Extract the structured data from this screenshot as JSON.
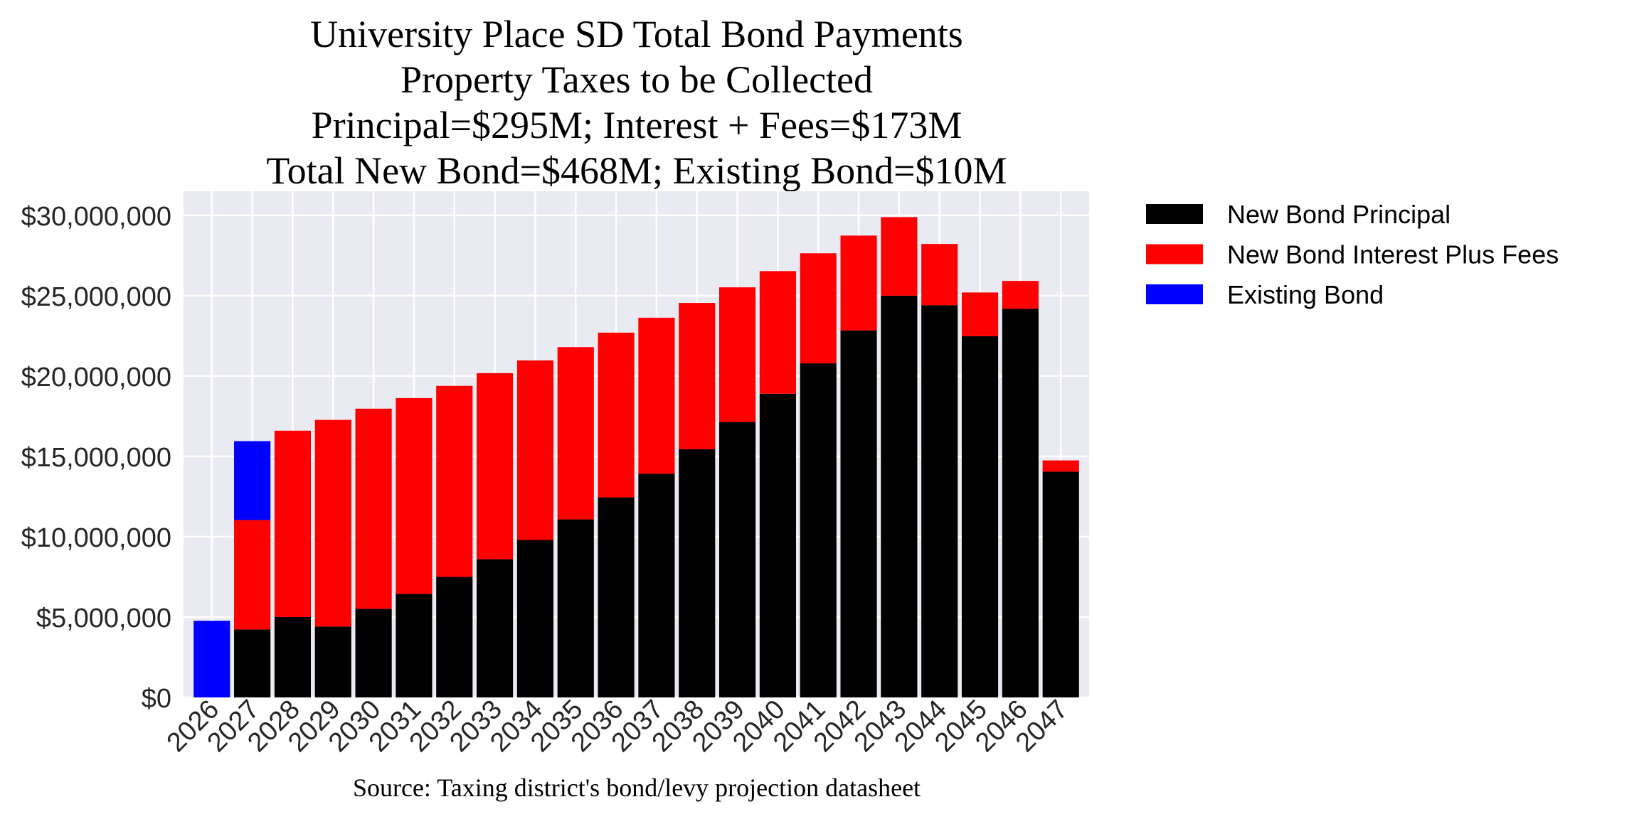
{
  "chart_data": {
    "type": "bar",
    "stacked": true,
    "title_lines": [
      "University Place SD Total Bond Payments",
      "Property Taxes to be Collected",
      "Principal=$295M; Interest + Fees=$173M",
      "Total New Bond=$468M; Existing Bond=$10M"
    ],
    "xlabel": "Source: Taxing district's bond/levy projection datasheet",
    "ylabel": "",
    "ylim": [
      0,
      31500000
    ],
    "yticks": [
      0,
      5000000,
      10000000,
      15000000,
      20000000,
      25000000,
      30000000
    ],
    "ytick_labels": [
      "$0",
      "$5,000,000",
      "$10,000,000",
      "$15,000,000",
      "$20,000,000",
      "$25,000,000",
      "$30,000,000"
    ],
    "grid": true,
    "background": "#EAEAF2",
    "legend_position": "outside-right-top",
    "categories": [
      "2026",
      "2027",
      "2028",
      "2029",
      "2030",
      "2031",
      "2032",
      "2033",
      "2034",
      "2035",
      "2036",
      "2037",
      "2038",
      "2039",
      "2040",
      "2041",
      "2042",
      "2043",
      "2044",
      "2045",
      "2046",
      "2047"
    ],
    "series": [
      {
        "name": "New Bond Principal",
        "color": "#000000",
        "values": [
          0,
          4230000,
          5000000,
          4410000,
          5520000,
          6440000,
          7500000,
          8600000,
          9800000,
          11080000,
          12450000,
          13920000,
          15450000,
          17140000,
          18900000,
          20790000,
          22840000,
          25000000,
          24410000,
          22480000,
          24190000,
          14050000
        ]
      },
      {
        "name": "New Bond Interest Plus Fees",
        "color": "#FF0000",
        "values": [
          0,
          6810000,
          11600000,
          12860000,
          12450000,
          12190000,
          11890000,
          11580000,
          11170000,
          10720000,
          10250000,
          9710000,
          9100000,
          8380000,
          7630000,
          6850000,
          5900000,
          4890000,
          3810000,
          2720000,
          1730000,
          700000
        ]
      },
      {
        "name": "Existing Bond",
        "color": "#0000FF",
        "values": [
          4770000,
          4910000,
          0,
          0,
          0,
          0,
          0,
          0,
          0,
          0,
          0,
          0,
          0,
          0,
          0,
          0,
          0,
          0,
          0,
          0,
          0,
          0
        ]
      }
    ]
  }
}
